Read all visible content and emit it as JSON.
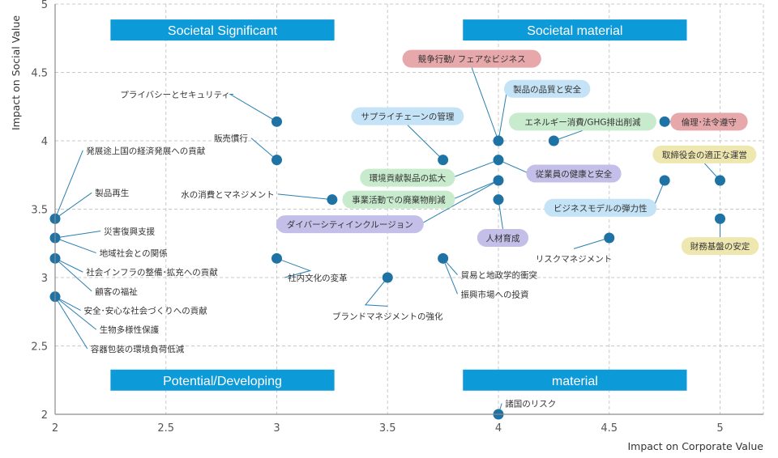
{
  "chart_data": {
    "type": "scatter",
    "xlabel": "Impact on Corporate Value",
    "ylabel": "Impact on Social Value",
    "xlim": [
      2,
      5.2
    ],
    "ylim": [
      2,
      5
    ],
    "x_ticks": [
      "2",
      "2.5",
      "3",
      "3.5",
      "4",
      "4.5",
      "5"
    ],
    "y_ticks": [
      "2",
      "2.5",
      "3",
      "3.5",
      "4",
      "4.5",
      "5"
    ],
    "grid": true,
    "colors": {
      "marker": "#1f72a4",
      "quadrant_banner": "#0d9ad8",
      "leader_line": "#2a7fb0",
      "grid": "#c9c9c9",
      "pill_pink": "#e6a8aa",
      "pill_blue": "#c4e3f6",
      "pill_green": "#c7ebcc",
      "pill_purple": "#c3bfe8",
      "pill_yellow": "#efe7b0"
    },
    "quadrants": [
      {
        "label": "Societal Significant",
        "x0": 2.25,
        "x1": 3.26,
        "y": 4.81
      },
      {
        "label": "Societal material",
        "x0": 3.84,
        "x1": 4.85,
        "y": 4.81
      },
      {
        "label": "Potential/Developing",
        "x0": 2.25,
        "x1": 3.26,
        "y": 2.25
      },
      {
        "label": "material",
        "x0": 3.84,
        "x1": 4.85,
        "y": 2.25
      }
    ],
    "points": [
      {
        "x": 3.0,
        "y": 4.14,
        "label": "プライバシーとセキュリティ",
        "lx": 2.79,
        "ly": 4.34,
        "anchor": "end",
        "style": "plain",
        "via": [
          2.79,
          4.34
        ]
      },
      {
        "x": 3.0,
        "y": 3.86,
        "label": "販売慣行",
        "lx": 2.87,
        "ly": 4.02,
        "anchor": "end",
        "style": "plain"
      },
      {
        "x": 2.0,
        "y": 3.43,
        "label": "発展途上国の経済発展への貢献",
        "lx": 2.14,
        "ly": 3.93,
        "anchor": "start",
        "style": "plain"
      },
      {
        "x": 2.0,
        "y": 3.43,
        "label": "製品再生",
        "lx": 2.18,
        "ly": 3.62,
        "anchor": "start",
        "style": "plain"
      },
      {
        "x": 3.25,
        "y": 3.57,
        "label": "水の消費とマネジメント",
        "lx": 2.99,
        "ly": 3.61,
        "anchor": "end",
        "style": "plain"
      },
      {
        "x": 2.0,
        "y": 3.29,
        "label": "災害復興支援",
        "lx": 2.22,
        "ly": 3.34,
        "anchor": "start",
        "style": "plain"
      },
      {
        "x": 2.0,
        "y": 3.29,
        "label": "地域社会との関係",
        "lx": 2.2,
        "ly": 3.18,
        "anchor": "start",
        "style": "plain"
      },
      {
        "x": 2.0,
        "y": 3.14,
        "label": "社会インフラの整備･拡充への貢献",
        "lx": 2.14,
        "ly": 3.04,
        "anchor": "start",
        "style": "plain"
      },
      {
        "x": 2.0,
        "y": 3.14,
        "label": "顧客の福祉",
        "lx": 2.18,
        "ly": 2.9,
        "anchor": "start",
        "style": "plain"
      },
      {
        "x": 2.0,
        "y": 2.86,
        "label": "安全･安心な社会づくりへの貢献",
        "lx": 2.13,
        "ly": 2.76,
        "anchor": "start",
        "style": "plain"
      },
      {
        "x": 2.0,
        "y": 2.86,
        "label": "生物多様性保護",
        "lx": 2.2,
        "ly": 2.62,
        "anchor": "start",
        "style": "plain"
      },
      {
        "x": 2.0,
        "y": 2.86,
        "label": "容器包装の環境負荷低減",
        "lx": 2.16,
        "ly": 2.48,
        "anchor": "start",
        "style": "plain"
      },
      {
        "x": 3.0,
        "y": 3.14,
        "label": "社内文化の変革",
        "lx": 3.05,
        "ly": 3.0,
        "anchor": "start",
        "style": "plain",
        "via": [
          3.15,
          3.05
        ]
      },
      {
        "x": 3.5,
        "y": 3.0,
        "label": "ブランドマネジメントの強化",
        "lx": 3.5,
        "ly": 2.72,
        "anchor": "middle",
        "style": "plain",
        "via": [
          3.4,
          2.8
        ]
      },
      {
        "x": 3.75,
        "y": 3.14,
        "label": "貿易と地政学的衝突",
        "lx": 3.83,
        "ly": 3.02,
        "anchor": "start",
        "style": "plain"
      },
      {
        "x": 3.75,
        "y": 3.14,
        "label": "振興市場への投資",
        "lx": 3.83,
        "ly": 2.88,
        "anchor": "start",
        "style": "plain"
      },
      {
        "x": 4.0,
        "y": 2.0,
        "label": "諸国のリスク",
        "lx": 4.03,
        "ly": 2.08,
        "anchor": "start",
        "style": "plain"
      },
      {
        "x": 4.5,
        "y": 3.29,
        "label": "リスクマネジメント",
        "lx": 4.34,
        "ly": 3.14,
        "anchor": "middle",
        "style": "plain"
      },
      {
        "x": 4.0,
        "y": 4.0,
        "label": "競争行動/ フェアなビジネス",
        "lx": 3.88,
        "ly": 4.6,
        "anchor": "middle",
        "style": "pink"
      },
      {
        "x": 4.0,
        "y": 4.0,
        "label": "製品の品質と安全",
        "lx": 4.22,
        "ly": 4.38,
        "anchor": "middle",
        "style": "blue"
      },
      {
        "x": 3.75,
        "y": 3.86,
        "label": "サプライチェーンの管理",
        "lx": 3.59,
        "ly": 4.18,
        "anchor": "middle",
        "style": "blue"
      },
      {
        "x": 4.25,
        "y": 4.0,
        "label": "エネルギー消費/GHG排出削減",
        "lx": 4.38,
        "ly": 4.14,
        "anchor": "middle",
        "style": "green"
      },
      {
        "x": 4.75,
        "y": 4.14,
        "label": "倫理･法令遵守",
        "lx": 4.95,
        "ly": 4.14,
        "anchor": "middle",
        "style": "pink"
      },
      {
        "x": 4.0,
        "y": 3.86,
        "label": "環境貢献製品の拡大",
        "lx": 3.59,
        "ly": 3.73,
        "anchor": "middle",
        "style": "green"
      },
      {
        "x": 4.0,
        "y": 3.86,
        "label": "従業員の健康と安全",
        "lx": 4.34,
        "ly": 3.76,
        "anchor": "middle",
        "style": "purple"
      },
      {
        "x": 4.0,
        "y": 3.71,
        "label": "事業活動での廃棄物削減",
        "lx": 3.55,
        "ly": 3.57,
        "anchor": "middle",
        "style": "green"
      },
      {
        "x": 4.0,
        "y": 3.71,
        "label": "ダイバーシティインクルージョン",
        "lx": 3.33,
        "ly": 3.39,
        "anchor": "middle",
        "style": "purple"
      },
      {
        "x": 4.0,
        "y": 3.57,
        "label": "人材育成",
        "lx": 4.02,
        "ly": 3.29,
        "anchor": "middle",
        "style": "purple"
      },
      {
        "x": 4.75,
        "y": 3.71,
        "label": "ビジネスモデルの弾力性",
        "lx": 4.46,
        "ly": 3.51,
        "anchor": "middle",
        "style": "blue"
      },
      {
        "x": 5.0,
        "y": 3.71,
        "label": "取締役会の適正な運営",
        "lx": 4.93,
        "ly": 3.9,
        "anchor": "middle",
        "style": "yellow"
      },
      {
        "x": 5.0,
        "y": 3.43,
        "label": "財務基盤の安定",
        "lx": 5.0,
        "ly": 3.23,
        "anchor": "middle",
        "style": "yellow"
      }
    ]
  }
}
